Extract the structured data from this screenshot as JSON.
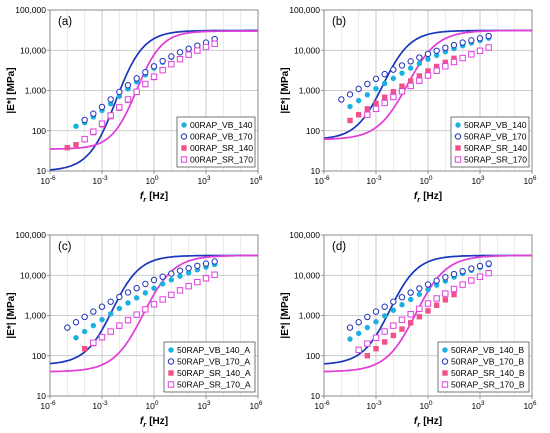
{
  "chart_data": [
    {
      "type": "scatter",
      "panel_label": "(a)",
      "xlabel": "f",
      "xlabel_sub": "r",
      "xlabel_unit": "[Hz]",
      "ylabel": "|E*| [MPa]",
      "x_scale": "log",
      "y_scale": "log",
      "xlim": [
        1e-06,
        1000000
      ],
      "ylim": [
        10,
        100000
      ],
      "x_ticks": [
        "10",
        "10",
        "10",
        "10",
        "10"
      ],
      "x_tick_exponents": [
        "-6",
        "-3",
        "0",
        "3",
        "6"
      ],
      "y_ticks": [
        "10",
        "100",
        "1,000",
        "10,000",
        "100,000"
      ],
      "grid": true,
      "legend_position": "bottom-right",
      "series": [
        {
          "name": "00RAP_VB_140",
          "color": "#1ab0e0",
          "marker": "filled-circle",
          "x_log": [
            -4.5,
            -4.0,
            -3.5,
            -3.0,
            -2.5,
            -2.0,
            -1.5,
            -1.0,
            -0.5,
            0.0,
            0.5,
            1.0,
            1.5
          ],
          "y": [
            130,
            160,
            220,
            320,
            470,
            720,
            1100,
            1650,
            2450,
            3600,
            5000,
            6700,
            8700
          ],
          "fit": {
            "ymin": 10,
            "ymax": 31000,
            "x_inflection_log": -2.2,
            "slope": 0.55
          }
        },
        {
          "name": "00RAP_VB_170",
          "color": "#2233bb",
          "marker": "open-circle",
          "x_log": [
            -4.0,
            -3.5,
            -3.0,
            -2.5,
            -2.0,
            -1.5,
            -1.0,
            -0.5,
            0.0,
            0.5,
            1.0,
            1.5,
            2.0,
            2.5,
            3.0,
            3.5
          ],
          "y": [
            185,
            265,
            390,
            600,
            920,
            1350,
            2000,
            2850,
            4000,
            5400,
            7000,
            8900,
            10900,
            13000,
            15500,
            19000
          ],
          "fit": {
            "ymin": 10,
            "ymax": 31000,
            "x_inflection_log": -2.2,
            "slope": 0.55
          }
        },
        {
          "name": "00RAP_SR_140",
          "color": "#f2508a",
          "marker": "filled-square",
          "x_log": [
            -5.0,
            -4.5,
            -4.0,
            -3.5,
            -3.0,
            -2.5,
            -2.0,
            -1.5,
            -1.0,
            -0.5,
            0.0
          ],
          "y": [
            38,
            45,
            60,
            90,
            140,
            225,
            360,
            570,
            900,
            1400,
            2100
          ],
          "fit": {
            "ymin": 35,
            "ymax": 30000,
            "x_inflection_log": -1.0,
            "slope": 0.6
          }
        },
        {
          "name": "00RAP_SR_170",
          "color": "#e040e0",
          "marker": "open-square",
          "x_log": [
            -4.0,
            -3.5,
            -3.0,
            -2.5,
            -2.0,
            -1.5,
            -1.0,
            -0.5,
            0.0,
            0.5,
            1.0,
            1.5,
            2.0,
            2.5,
            3.0,
            3.5
          ],
          "y": [
            62,
            95,
            150,
            240,
            380,
            600,
            930,
            1450,
            2200,
            3200,
            4500,
            6000,
            7800,
            9800,
            12000,
            14500
          ],
          "fit": {
            "ymin": 35,
            "ymax": 30000,
            "x_inflection_log": -1.0,
            "slope": 0.6
          }
        }
      ]
    },
    {
      "type": "scatter",
      "panel_label": "(b)",
      "xlabel": "f",
      "xlabel_sub": "r",
      "xlabel_unit": "[Hz]",
      "ylabel": "|E*| [MPa]",
      "x_scale": "log",
      "y_scale": "log",
      "xlim": [
        1e-06,
        1000000
      ],
      "ylim": [
        10,
        100000
      ],
      "x_ticks": [
        "10",
        "10",
        "10",
        "10",
        "10"
      ],
      "x_tick_exponents": [
        "-6",
        "-3",
        "0",
        "3",
        "6"
      ],
      "y_ticks": [
        "10",
        "100",
        "1,000",
        "10,000",
        "100,000"
      ],
      "grid": true,
      "legend_position": "bottom-right",
      "series": [
        {
          "name": "50RAP_VB_140",
          "color": "#1ab0e0",
          "marker": "filled-circle",
          "x_log": [
            -4.5,
            -4.0,
            -3.5,
            -3.0,
            -2.5,
            -2.0,
            -1.5,
            -1.0,
            -0.5,
            0.0,
            0.5,
            1.0,
            1.5,
            2.0,
            2.5,
            3.0,
            3.5
          ],
          "y": [
            400,
            560,
            780,
            1100,
            1500,
            2000,
            2700,
            3600,
            4700,
            6000,
            7500,
            9200,
            11000,
            13000,
            15200,
            17500,
            20000
          ],
          "fit": {
            "ymin": 60,
            "ymax": 31000,
            "x_inflection_log": -2.6,
            "slope": 0.55
          }
        },
        {
          "name": "50RAP_VB_170",
          "color": "#2233bb",
          "marker": "open-circle",
          "x_log": [
            -5.0,
            -4.5,
            -4.0,
            -3.5,
            -3.0,
            -2.5,
            -2.0,
            -1.5,
            -1.0,
            -0.5,
            0.0,
            0.5,
            1.0,
            1.5,
            2.0,
            2.5,
            3.0,
            3.5
          ],
          "y": [
            600,
            800,
            1100,
            1450,
            1950,
            2550,
            3300,
            4200,
            5300,
            6600,
            8100,
            9700,
            11500,
            13400,
            15500,
            17600,
            19900,
            22500
          ],
          "fit": {
            "ymin": 60,
            "ymax": 31000,
            "x_inflection_log": -2.6,
            "slope": 0.55
          }
        },
        {
          "name": "50RAP_SR_140",
          "color": "#f2508a",
          "marker": "filled-square",
          "x_log": [
            -4.5,
            -4.0,
            -3.5,
            -3.0,
            -2.5,
            -2.0,
            -1.5,
            -1.0,
            -0.5,
            0.0,
            0.5,
            1.0,
            1.5
          ],
          "y": [
            180,
            250,
            350,
            480,
            680,
            930,
            1280,
            1730,
            2300,
            3050,
            3950,
            5000,
            6300
          ],
          "fit": {
            "ymin": 60,
            "ymax": 31000,
            "x_inflection_log": -1.2,
            "slope": 0.5
          }
        },
        {
          "name": "50RAP_SR_170",
          "color": "#e040e0",
          "marker": "open-square",
          "x_log": [
            -3.5,
            -3.0,
            -2.5,
            -2.0,
            -1.5,
            -1.0,
            -0.5,
            0.0,
            0.5,
            1.0,
            1.5,
            2.0,
            2.5,
            3.0,
            3.5
          ],
          "y": [
            250,
            350,
            490,
            690,
            950,
            1300,
            1750,
            2350,
            3100,
            4000,
            5100,
            6400,
            7900,
            9700,
            11700
          ],
          "fit": {
            "ymin": 60,
            "ymax": 31000,
            "x_inflection_log": -1.2,
            "slope": 0.5
          }
        }
      ]
    },
    {
      "type": "scatter",
      "panel_label": "(c)",
      "xlabel": "f",
      "xlabel_sub": "r",
      "xlabel_unit": "[Hz]",
      "ylabel": "|E*| [MPa]",
      "x_scale": "log",
      "y_scale": "log",
      "xlim": [
        1e-06,
        1000000
      ],
      "ylim": [
        10,
        100000
      ],
      "x_ticks": [
        "10",
        "10",
        "10",
        "10",
        "10"
      ],
      "x_tick_exponents": [
        "-6",
        "-3",
        "0",
        "3",
        "6"
      ],
      "y_ticks": [
        "10",
        "100",
        "1,000",
        "10,000",
        "100,000"
      ],
      "grid": true,
      "legend_position": "bottom-right",
      "series": [
        {
          "name": "50RAP_VB_140_A",
          "color": "#1ab0e0",
          "marker": "filled-circle",
          "x_log": [
            -4.5,
            -4.0,
            -3.5,
            -3.0,
            -2.5,
            -2.0,
            -1.5,
            -1.0,
            -0.5,
            0.0,
            0.5,
            1.0,
            1.5,
            2.0,
            2.5,
            3.0,
            3.5
          ],
          "y": [
            280,
            400,
            560,
            790,
            1100,
            1500,
            2050,
            2750,
            3650,
            4750,
            6100,
            7700,
            9500,
            11500,
            13700,
            16000,
            18500
          ],
          "fit": {
            "ymin": 60,
            "ymax": 31000,
            "x_inflection_log": -2.4,
            "slope": 0.55
          }
        },
        {
          "name": "50RAP_VB_170_A",
          "color": "#2233bb",
          "marker": "open-circle",
          "x_log": [
            -5.0,
            -4.5,
            -4.0,
            -3.5,
            -3.0,
            -2.5,
            -2.0,
            -1.5,
            -1.0,
            -0.5,
            0.0,
            0.5,
            1.0,
            1.5,
            2.0,
            2.5,
            3.0,
            3.5
          ],
          "y": [
            500,
            680,
            920,
            1250,
            1650,
            2200,
            2900,
            3750,
            4800,
            6100,
            7600,
            9200,
            11000,
            13000,
            15000,
            17200,
            19500,
            22000
          ],
          "fit": {
            "ymin": 60,
            "ymax": 31000,
            "x_inflection_log": -2.4,
            "slope": 0.55
          }
        },
        {
          "name": "50RAP_SR_140_A",
          "color": "#f2508a",
          "marker": "filled-square",
          "x_log": [
            -4.0,
            -3.5,
            -3.0,
            -2.5,
            -2.0,
            -1.5,
            -1.0,
            -0.5,
            0.0,
            0.5,
            1.0,
            1.5
          ],
          "y": [
            150,
            200,
            280,
            390,
            540,
            750,
            1030,
            1400,
            1880,
            2500,
            3300,
            4300
          ],
          "fit": {
            "ymin": 40,
            "ymax": 31000,
            "x_inflection_log": -0.6,
            "slope": 0.5
          }
        },
        {
          "name": "50RAP_SR_170_A",
          "color": "#e040e0",
          "marker": "open-square",
          "x_log": [
            -3.5,
            -3.0,
            -2.5,
            -2.0,
            -1.5,
            -1.0,
            -0.5,
            0.0,
            0.5,
            1.0,
            1.5,
            2.0,
            2.5,
            3.0,
            3.5
          ],
          "y": [
            210,
            290,
            400,
            560,
            770,
            1050,
            1420,
            1900,
            2500,
            3250,
            4200,
            5350,
            6750,
            8400,
            10300
          ],
          "fit": {
            "ymin": 40,
            "ymax": 31000,
            "x_inflection_log": -0.6,
            "slope": 0.5
          }
        }
      ]
    },
    {
      "type": "scatter",
      "panel_label": "(d)",
      "xlabel": "f",
      "xlabel_sub": "r",
      "xlabel_unit": "[Hz]",
      "ylabel": "|E*| [MPa]",
      "x_scale": "log",
      "y_scale": "log",
      "xlim": [
        1e-06,
        1000000
      ],
      "ylim": [
        10,
        100000
      ],
      "x_ticks": [
        "10",
        "10",
        "10",
        "10",
        "10"
      ],
      "x_tick_exponents": [
        "-6",
        "-3",
        "0",
        "3",
        "6"
      ],
      "y_ticks": [
        "10",
        "100",
        "1,000",
        "10,000",
        "100,000"
      ],
      "grid": true,
      "legend_position": "bottom-right",
      "series": [
        {
          "name": "50RAP_VB_140_B",
          "color": "#1ab0e0",
          "marker": "filled-circle",
          "x_log": [
            -4.5,
            -4.0,
            -3.5,
            -3.0,
            -2.5,
            -2.0,
            -1.5,
            -1.0,
            -0.5,
            0.0,
            0.5,
            1.0,
            1.5,
            2.0,
            2.5,
            3.0,
            3.5
          ],
          "y": [
            260,
            360,
            500,
            700,
            980,
            1350,
            1850,
            2500,
            3350,
            4400,
            5700,
            7200,
            9000,
            11000,
            13200,
            15600,
            18000
          ],
          "fit": {
            "ymin": 60,
            "ymax": 31000,
            "x_inflection_log": -2.2,
            "slope": 0.55
          }
        },
        {
          "name": "50RAP_VB_170_B",
          "color": "#2233bb",
          "marker": "open-circle",
          "x_log": [
            -4.5,
            -4.0,
            -3.5,
            -3.0,
            -2.5,
            -2.0,
            -1.5,
            -1.0,
            -0.5,
            0.0,
            0.5,
            1.0,
            1.5,
            2.0,
            2.5,
            3.0,
            3.5
          ],
          "y": [
            500,
            680,
            920,
            1250,
            1650,
            2200,
            2850,
            3700,
            4700,
            5900,
            7300,
            8900,
            10700,
            12600,
            14700,
            17000,
            19500
          ],
          "fit": {
            "ymin": 60,
            "ymax": 31000,
            "x_inflection_log": -2.2,
            "slope": 0.55
          }
        },
        {
          "name": "50RAP_SR_140_B",
          "color": "#f2508a",
          "marker": "filled-square",
          "x_log": [
            -3.5,
            -3.0,
            -2.5,
            -2.0,
            -1.5,
            -1.0,
            -0.5,
            0.0,
            0.5,
            1.0,
            1.5
          ],
          "y": [
            100,
            150,
            220,
            320,
            460,
            660,
            930,
            1300,
            1800,
            2450,
            3300
          ],
          "fit": {
            "ymin": 40,
            "ymax": 31000,
            "x_inflection_log": -0.7,
            "slope": 0.5
          }
        },
        {
          "name": "50RAP_SR_170_B",
          "color": "#e040e0",
          "marker": "open-square",
          "x_log": [
            -4.0,
            -3.5,
            -3.0,
            -2.5,
            -2.0,
            -1.5,
            -1.0,
            -0.5,
            0.0,
            0.5,
            1.0,
            1.5,
            2.0,
            2.5,
            3.0,
            3.5
          ],
          "y": [
            140,
            200,
            280,
            400,
            560,
            780,
            1080,
            1470,
            1980,
            2650,
            3500,
            4550,
            5850,
            7400,
            9200,
            11300
          ],
          "fit": {
            "ymin": 40,
            "ymax": 31000,
            "x_inflection_log": -0.7,
            "slope": 0.5
          }
        }
      ]
    }
  ]
}
